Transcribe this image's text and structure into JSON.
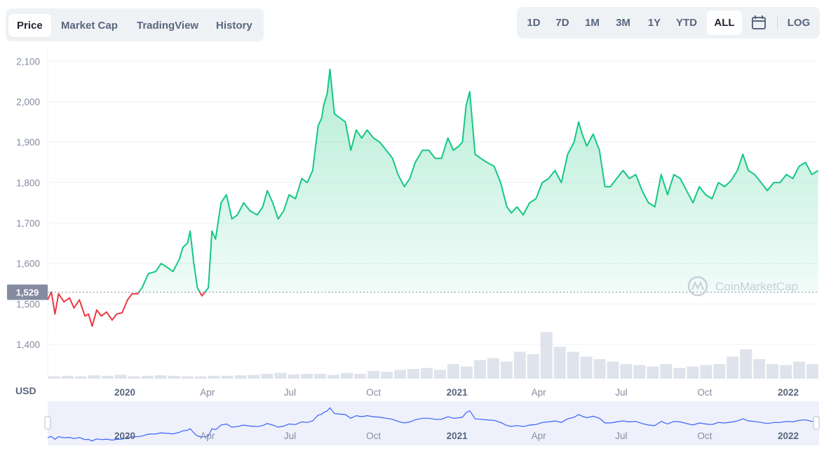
{
  "tabs": [
    "Price",
    "Market Cap",
    "TradingView",
    "History"
  ],
  "active_tab": "Price",
  "ranges": [
    "1D",
    "7D",
    "1M",
    "3M",
    "1Y",
    "YTD",
    "ALL"
  ],
  "active_range": "ALL",
  "log_label": "LOG",
  "calendar_icon": "calendar-icon",
  "colors": {
    "up": "#16c784",
    "down": "#ea3943",
    "nav_line": "#3861fb",
    "grid": "#eff2f5"
  },
  "chart_data": {
    "type": "line",
    "y_axis_label": "USD",
    "y_ticks": [
      1400,
      1500,
      1600,
      1700,
      1800,
      1900,
      2000,
      2100
    ],
    "y_tick_labels": [
      "1,400",
      "1,500",
      "1,600",
      "1,700",
      "1,800",
      "1,900",
      "2,000",
      "2,100"
    ],
    "ylim": [
      1315,
      2130
    ],
    "baseline_value": 1529,
    "baseline_label": "1,529",
    "x_ticks": [
      {
        "label": "2020",
        "date": "2020-01-01",
        "bold": true
      },
      {
        "label": "Apr",
        "date": "2020-04-01",
        "bold": false
      },
      {
        "label": "Jul",
        "date": "2020-07-01",
        "bold": false
      },
      {
        "label": "Oct",
        "date": "2020-10-01",
        "bold": false
      },
      {
        "label": "2021",
        "date": "2021-01-01",
        "bold": true
      },
      {
        "label": "Apr",
        "date": "2021-04-01",
        "bold": false
      },
      {
        "label": "Jul",
        "date": "2021-07-01",
        "bold": false
      },
      {
        "label": "Oct",
        "date": "2021-10-01",
        "bold": false
      },
      {
        "label": "2022",
        "date": "2022-01-01",
        "bold": true
      }
    ],
    "xlim": [
      "2019-10-08",
      "2022-02-04"
    ],
    "series": [
      {
        "dates": [
          "2019-10-08",
          "2019-10-12",
          "2019-10-16",
          "2019-10-20",
          "2019-10-26",
          "2019-11-01",
          "2019-11-06",
          "2019-11-12",
          "2019-11-18",
          "2019-11-22",
          "2019-11-26",
          "2019-12-01",
          "2019-12-06",
          "2019-12-12",
          "2019-12-18",
          "2019-12-23",
          "2019-12-29",
          "2020-01-04",
          "2020-01-09",
          "2020-01-15",
          "2020-01-20",
          "2020-01-27",
          "2020-02-04",
          "2020-02-10",
          "2020-02-17",
          "2020-02-23",
          "2020-03-01",
          "2020-03-05",
          "2020-03-10",
          "2020-03-13",
          "2020-03-17",
          "2020-03-21",
          "2020-03-26",
          "2020-04-02",
          "2020-04-06",
          "2020-04-10",
          "2020-04-16",
          "2020-04-22",
          "2020-04-28",
          "2020-05-04",
          "2020-05-11",
          "2020-05-18",
          "2020-05-26",
          "2020-06-01",
          "2020-06-06",
          "2020-06-12",
          "2020-06-18",
          "2020-06-24",
          "2020-06-30",
          "2020-07-07",
          "2020-07-14",
          "2020-07-20",
          "2020-07-26",
          "2020-08-01",
          "2020-08-05",
          "2020-08-07",
          "2020-08-11",
          "2020-08-14",
          "2020-08-19",
          "2020-08-25",
          "2020-08-31",
          "2020-09-06",
          "2020-09-12",
          "2020-09-18",
          "2020-09-24",
          "2020-10-01",
          "2020-10-08",
          "2020-10-15",
          "2020-10-22",
          "2020-10-28",
          "2020-11-04",
          "2020-11-10",
          "2020-11-16",
          "2020-11-24",
          "2020-12-01",
          "2020-12-08",
          "2020-12-15",
          "2020-12-22",
          "2020-12-28",
          "2021-01-03",
          "2021-01-07",
          "2021-01-11",
          "2021-01-15",
          "2021-01-21",
          "2021-01-27",
          "2021-02-03",
          "2021-02-11",
          "2021-02-18",
          "2021-02-25",
          "2021-03-02",
          "2021-03-08",
          "2021-03-15",
          "2021-03-22",
          "2021-03-29",
          "2021-04-05",
          "2021-04-12",
          "2021-04-19",
          "2021-04-26",
          "2021-05-03",
          "2021-05-10",
          "2021-05-15",
          "2021-05-19",
          "2021-05-24",
          "2021-05-31",
          "2021-06-07",
          "2021-06-13",
          "2021-06-19",
          "2021-06-26",
          "2021-07-03",
          "2021-07-10",
          "2021-07-17",
          "2021-07-24",
          "2021-07-31",
          "2021-08-07",
          "2021-08-14",
          "2021-08-21",
          "2021-08-28",
          "2021-09-04",
          "2021-09-11",
          "2021-09-18",
          "2021-09-25",
          "2021-10-02",
          "2021-10-09",
          "2021-10-16",
          "2021-10-23",
          "2021-10-30",
          "2021-11-06",
          "2021-11-12",
          "2021-11-18",
          "2021-11-25",
          "2021-12-02",
          "2021-12-09",
          "2021-12-16",
          "2021-12-23",
          "2021-12-30",
          "2022-01-06",
          "2022-01-13",
          "2022-01-20",
          "2022-01-27",
          "2022-02-03"
        ],
        "values": [
          1510,
          1530,
          1475,
          1525,
          1505,
          1515,
          1490,
          1510,
          1470,
          1475,
          1445,
          1485,
          1470,
          1480,
          1460,
          1475,
          1478,
          1510,
          1525,
          1525,
          1540,
          1575,
          1580,
          1600,
          1590,
          1580,
          1610,
          1640,
          1650,
          1680,
          1600,
          1540,
          1520,
          1540,
          1680,
          1660,
          1750,
          1770,
          1710,
          1720,
          1750,
          1730,
          1720,
          1740,
          1780,
          1750,
          1710,
          1730,
          1770,
          1760,
          1810,
          1800,
          1830,
          1940,
          1960,
          1990,
          2020,
          2080,
          1970,
          1960,
          1950,
          1880,
          1930,
          1910,
          1930,
          1910,
          1900,
          1880,
          1860,
          1820,
          1790,
          1810,
          1850,
          1880,
          1880,
          1860,
          1860,
          1910,
          1880,
          1890,
          1900,
          1990,
          2025,
          1870,
          1860,
          1850,
          1840,
          1800,
          1740,
          1725,
          1740,
          1720,
          1750,
          1760,
          1800,
          1810,
          1830,
          1800,
          1870,
          1900,
          1950,
          1920,
          1890,
          1920,
          1880,
          1790,
          1790,
          1810,
          1830,
          1810,
          1820,
          1780,
          1750,
          1740,
          1820,
          1770,
          1820,
          1810,
          1780,
          1750,
          1790,
          1770,
          1760,
          1800,
          1790,
          1805,
          1830,
          1870,
          1830,
          1820,
          1800,
          1780,
          1800,
          1800,
          1820,
          1810,
          1840,
          1850,
          1820,
          1830
        ]
      }
    ],
    "volume_scale": "relative 0-1",
    "volume": [
      0.05,
      0.06,
      0.05,
      0.07,
      0.06,
      0.08,
      0.05,
      0.06,
      0.07,
      0.06,
      0.05,
      0.05,
      0.06,
      0.06,
      0.07,
      0.08,
      0.1,
      0.12,
      0.09,
      0.1,
      0.1,
      0.08,
      0.12,
      0.1,
      0.16,
      0.14,
      0.18,
      0.2,
      0.22,
      0.18,
      0.3,
      0.25,
      0.38,
      0.42,
      0.35,
      0.55,
      0.5,
      0.95,
      0.65,
      0.55,
      0.45,
      0.4,
      0.35,
      0.3,
      0.28,
      0.25,
      0.3,
      0.22,
      0.25,
      0.28,
      0.3,
      0.45,
      0.6,
      0.4,
      0.3,
      0.28,
      0.35,
      0.3
    ],
    "watermark": "CoinMarketCap"
  }
}
